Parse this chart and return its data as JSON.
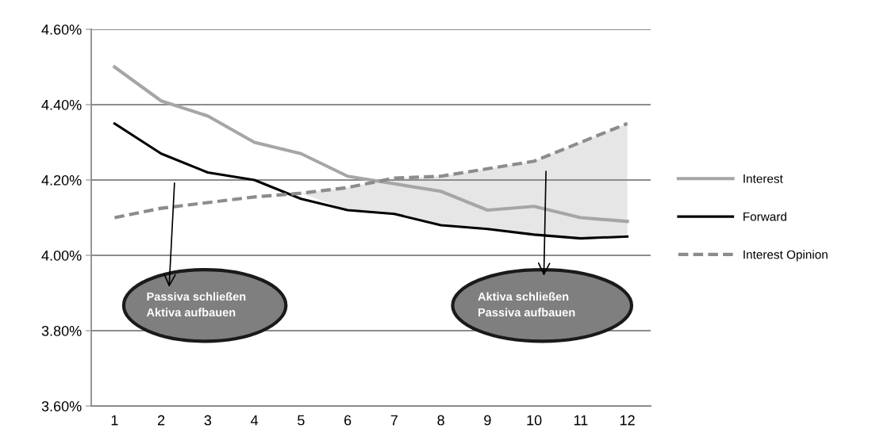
{
  "chart_data": {
    "type": "line",
    "x": [
      1,
      2,
      3,
      4,
      5,
      6,
      7,
      8,
      9,
      10,
      11,
      12
    ],
    "xlim": [
      0.5,
      12.5
    ],
    "xticks": [
      1,
      2,
      3,
      4,
      5,
      6,
      7,
      8,
      9,
      10,
      11,
      12
    ],
    "ylim": [
      3.6,
      4.6
    ],
    "yticks": [
      {
        "value": 3.6,
        "label": "3.60%"
      },
      {
        "value": 3.8,
        "label": "3.80%"
      },
      {
        "value": 4.0,
        "label": "4.00%"
      },
      {
        "value": 4.2,
        "label": "4.20%"
      },
      {
        "value": 4.4,
        "label": "4.40%"
      },
      {
        "value": 4.6,
        "label": "4.60%"
      }
    ],
    "grid": "y",
    "legend": "right",
    "series": [
      {
        "name": "Interest",
        "color": "#a6a6a6",
        "line_style": "solid",
        "values": [
          4.5,
          4.41,
          4.37,
          4.3,
          4.27,
          4.21,
          4.19,
          4.17,
          4.12,
          4.13,
          4.1,
          4.09
        ]
      },
      {
        "name": "Forward",
        "color": "#000000",
        "line_style": "solid",
        "values": [
          4.35,
          4.27,
          4.22,
          4.2,
          4.15,
          4.12,
          4.11,
          4.08,
          4.07,
          4.055,
          4.045,
          4.05
        ]
      },
      {
        "name": "Interest Opinion",
        "color": "#8c8c8c",
        "line_style": "dashed",
        "values": [
          4.1,
          4.125,
          4.14,
          4.155,
          4.165,
          4.18,
          4.205,
          4.21,
          4.23,
          4.25,
          4.3,
          4.35
        ],
        "lower": [
          null,
          null,
          null,
          null,
          4.165,
          4.12,
          4.11,
          4.08,
          4.07,
          4.055,
          4.045,
          4.05
        ],
        "upper": [
          null,
          null,
          null,
          null,
          4.165,
          4.18,
          4.205,
          4.21,
          4.23,
          4.25,
          4.3,
          4.35
        ]
      }
    ],
    "annotations": [
      "Passiva schließen\nAktiva aufbauen",
      "Aktiva schließen\nPassiva aufbauen"
    ]
  }
}
